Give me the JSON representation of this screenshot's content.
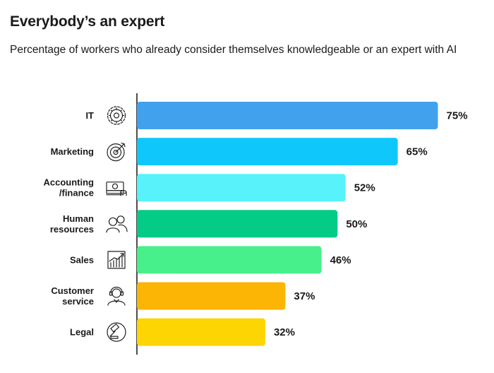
{
  "title": "Everybody’s an expert",
  "subtitle": "Percentage of workers who already consider themselves knowledgeable or an expert with AI",
  "chart_data": {
    "type": "bar",
    "orientation": "horizontal",
    "title": "Everybody’s an expert",
    "subtitle": "Percentage of workers who already consider themselves knowledgeable or an expert with AI",
    "xlim": [
      0,
      100
    ],
    "grid": false,
    "categories": [
      [
        "IT"
      ],
      [
        "Marketing"
      ],
      [
        "Accounting",
        "/finance"
      ],
      [
        "Human",
        "resources"
      ],
      [
        "Sales"
      ],
      [
        "Customer",
        "service"
      ],
      [
        "Legal"
      ]
    ],
    "values": [
      75,
      65,
      52,
      50,
      46,
      37,
      32
    ],
    "value_suffix": "%",
    "colors": [
      "#42A1EC",
      "#10C7FC",
      "#57F2FA",
      "#04CC86",
      "#47F08A",
      "#FCB505",
      "#FDD503"
    ],
    "icons": [
      "gear-icon",
      "target-icon",
      "money-icon",
      "people-icon",
      "chart-growth-icon",
      "customer-service-icon",
      "gavel-icon"
    ]
  }
}
